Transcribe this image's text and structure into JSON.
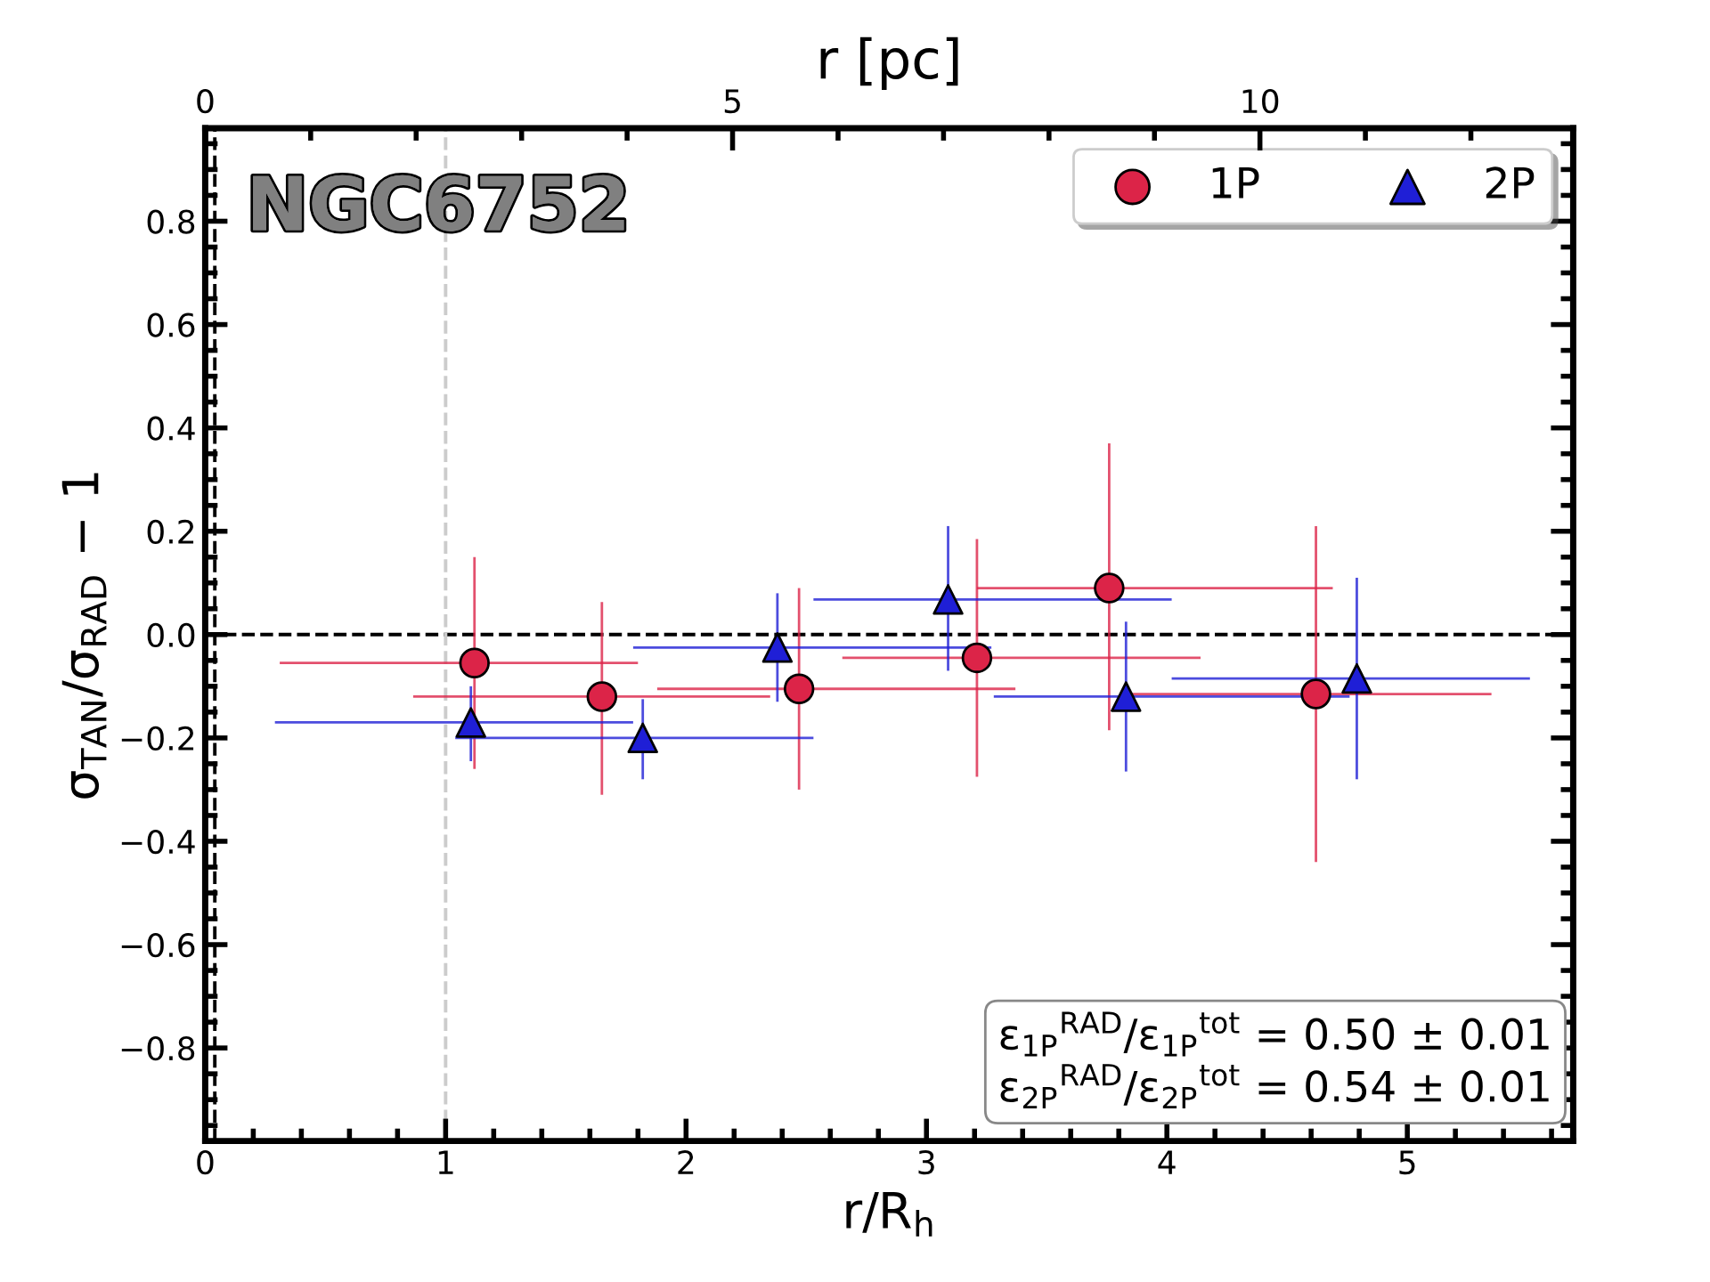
{
  "chart_data": {
    "type": "scatter",
    "xlabel": "r/R$_{h}$",
    "ylabel": "σ$_{TAN}$/σ$_{RAD}$ − 1",
    "x2label": "r [pc]",
    "xlim": [
      0,
      5.69
    ],
    "xticks": [
      0,
      1,
      2,
      3,
      4,
      5
    ],
    "ylim": [
      -0.98,
      0.98
    ],
    "yticks": [
      {
        "value": -0.8,
        "label": "−0.8"
      },
      {
        "value": -0.6,
        "label": "−0.6"
      },
      {
        "value": -0.4,
        "label": "−0.4"
      },
      {
        "value": -0.2,
        "label": "−0.2"
      },
      {
        "value": 0,
        "label": "0.0"
      },
      0.2,
      0.4,
      0.6,
      0.8
    ],
    "x2lim": [
      0,
      12.97
    ],
    "x2ticks": [
      0,
      5,
      10
    ],
    "legend": "top right",
    "grid": false,
    "annotations": [
      "NGC6752",
      "ε$_{1P}$$^{RAD}$/ε$_{1P}$$^{tot}$ = 0.50 ± 0.01\nε$_{2P}$$^{RAD}$/ε$_{2P}$$^{tot}$ = 0.54 ± 0.01"
    ],
    "ref_lines": [
      {
        "axis": "y",
        "value": 0,
        "color": "#000000",
        "line_style": "dashed"
      },
      {
        "axis": "x",
        "value": 1,
        "color": "#cccccc",
        "line_style": "dashed"
      },
      {
        "axis": "x",
        "value": 0.04,
        "color": "#000000",
        "line_style": "dashed"
      }
    ],
    "series": [
      {
        "name": "1P",
        "color": "#dc2448",
        "marker": "circle",
        "x": [
          1.12,
          1.65,
          2.47,
          3.21,
          3.76,
          4.62
        ],
        "values": [
          -0.055,
          -0.12,
          -0.105,
          -0.045,
          0.09,
          -0.115
        ],
        "errors": [
          [
            -0.26,
            0.15
          ],
          [
            -0.31,
            0.063
          ],
          [
            -0.3,
            0.09
          ],
          [
            -0.275,
            0.185
          ],
          [
            -0.185,
            0.37
          ],
          [
            -0.44,
            0.21
          ]
        ],
        "xerrors": [
          [
            0.31,
            1.8
          ],
          [
            0.865,
            2.35
          ],
          [
            1.88,
            3.37
          ],
          [
            2.65,
            4.14
          ],
          [
            3.21,
            4.69
          ],
          [
            3.85,
            5.35
          ]
        ]
      },
      {
        "name": "2P",
        "color": "#1f1fd6",
        "marker": "triangle",
        "x": [
          1.105,
          1.82,
          2.38,
          3.09,
          3.83,
          4.79
        ],
        "values": [
          -0.17,
          -0.2,
          -0.025,
          0.068,
          -0.12,
          -0.085
        ],
        "errors": [
          [
            -0.245,
            -0.1
          ],
          [
            -0.28,
            -0.125
          ],
          [
            -0.13,
            0.08
          ],
          [
            -0.07,
            0.21
          ],
          [
            -0.265,
            0.025
          ],
          [
            -0.28,
            0.11
          ]
        ],
        "xerrors": [
          [
            0.29,
            1.78
          ],
          [
            1.04,
            2.53
          ],
          [
            1.78,
            3.27
          ],
          [
            2.53,
            4.02
          ],
          [
            3.28,
            4.76
          ],
          [
            4.02,
            5.51
          ]
        ]
      }
    ]
  }
}
